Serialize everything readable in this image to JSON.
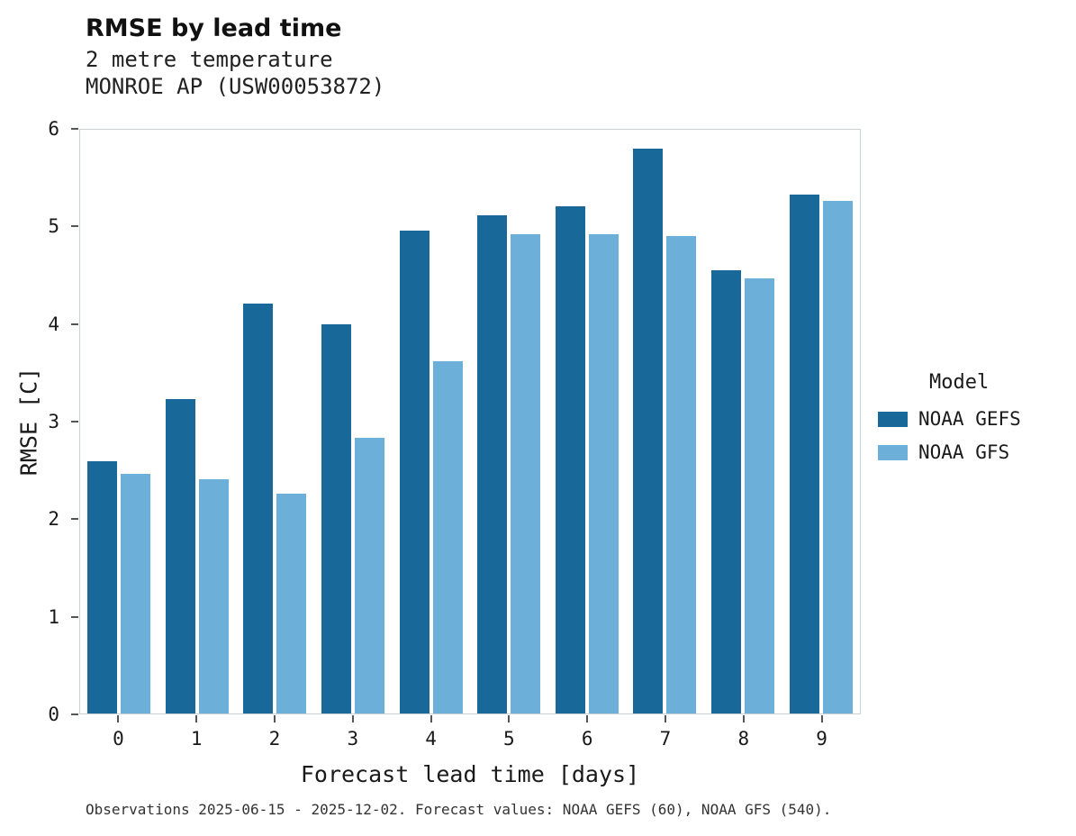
{
  "header": {
    "title": "RMSE by lead time",
    "subtitle1": "2 metre temperature",
    "subtitle2": "MONROE AP (USW00053872)"
  },
  "legend": {
    "title": "Model",
    "position": "right"
  },
  "footer": {
    "caption": "Observations 2025-06-15 - 2025-12-02. Forecast values: NOAA GEFS (60), NOAA GFS (540)."
  },
  "chart_data": {
    "type": "bar",
    "title": "RMSE by lead time",
    "subtitle": "2 metre temperature — MONROE AP (USW00053872)",
    "xlabel": "Forecast lead time [days]",
    "ylabel": "RMSE [C]",
    "categories": [
      "0",
      "1",
      "2",
      "3",
      "4",
      "5",
      "6",
      "7",
      "8",
      "9"
    ],
    "series": [
      {
        "name": "NOAA GEFS",
        "color": "#19689a",
        "values": [
          2.59,
          3.23,
          4.21,
          4.0,
          4.96,
          5.12,
          5.21,
          5.81,
          4.56,
          5.33
        ]
      },
      {
        "name": "NOAA GFS",
        "color": "#6cb0d9",
        "values": [
          2.46,
          2.41,
          2.26,
          2.83,
          3.62,
          4.93,
          4.93,
          4.91,
          4.47,
          5.27
        ]
      }
    ],
    "ylim": [
      0,
      6
    ],
    "yticks": [
      0,
      1,
      2,
      3,
      4,
      5,
      6
    ],
    "grid": false,
    "legend_position": "right"
  }
}
